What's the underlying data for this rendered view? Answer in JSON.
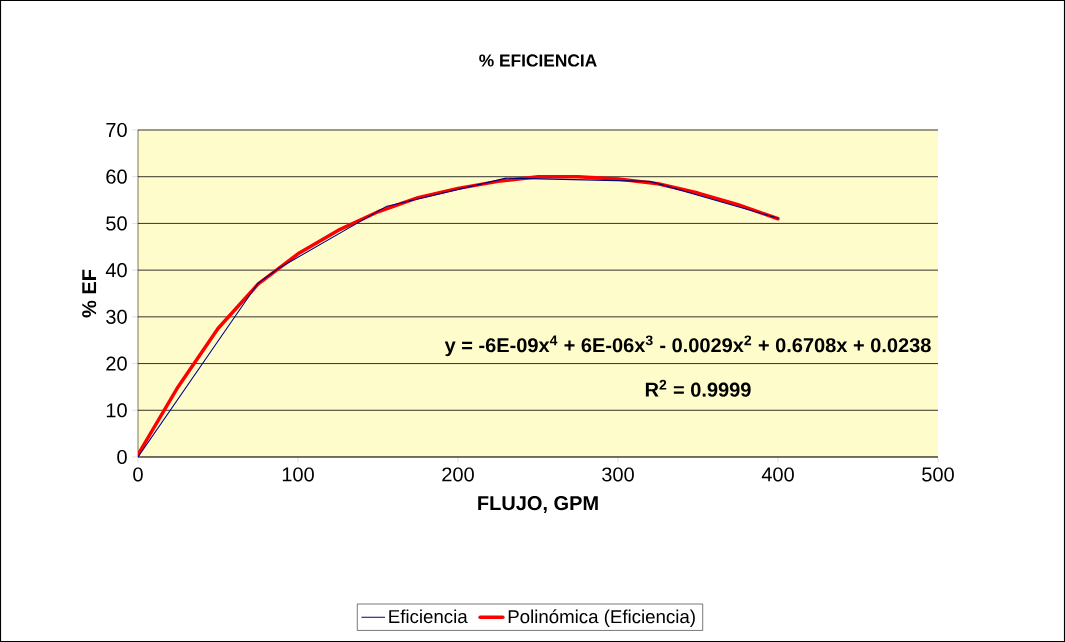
{
  "chart_data": {
    "type": "line",
    "title": "% EFICIENCIA",
    "xlabel": "FLUJO, GPM",
    "ylabel": "% EF",
    "annotations": [
      "y = -6E-09x$^{4}$ + 6E-06x$^{3}$ - 0.0029x$^{2}$ + 0.6708x + 0.0238",
      "R$^{2}$ = 0.9999"
    ],
    "series": [
      {
        "name": "Eficiencia",
        "color": "#000080",
        "x": [
          0,
          75,
          88,
          155,
          230,
          320,
          400
        ],
        "values": [
          0,
          37.2,
          40.4,
          53.6,
          59.7,
          59,
          51.1
        ]
      },
      {
        "name": "Polinómica (Eficiencia)",
        "color": "#ff0000",
        "x": [
          0,
          25,
          50,
          75,
          100,
          125,
          150,
          175,
          200,
          225,
          250,
          275,
          300,
          325,
          350,
          375,
          400
        ],
        "values": [
          0.5,
          15,
          27.5,
          37,
          43.5,
          48.5,
          52.5,
          55.5,
          57.5,
          59,
          60,
          60,
          59.5,
          58.5,
          56.5,
          54,
          51
        ]
      }
    ],
    "xlim": [
      0,
      500
    ],
    "ylim": [
      0,
      70
    ],
    "xticks": [
      0,
      100,
      200,
      300,
      400,
      500
    ],
    "yticks": [
      0,
      10,
      20,
      30,
      40,
      50,
      60,
      70
    ],
    "grid": "y",
    "legend": "bottom",
    "marker": "none",
    "line_style": "solid"
  }
}
